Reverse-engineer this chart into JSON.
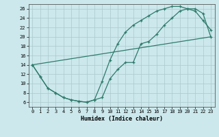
{
  "xlabel": "Humidex (Indice chaleur)",
  "bg_color": "#cce8ec",
  "grid_color": "#aac8cc",
  "line_color": "#2d7a6a",
  "xlim": [
    -0.5,
    23.5
  ],
  "ylim": [
    5,
    27
  ],
  "xticks": [
    0,
    1,
    2,
    3,
    4,
    5,
    6,
    7,
    8,
    9,
    10,
    11,
    12,
    13,
    14,
    15,
    16,
    17,
    18,
    19,
    20,
    21,
    22,
    23
  ],
  "yticks": [
    6,
    8,
    10,
    12,
    14,
    16,
    18,
    20,
    22,
    24,
    26
  ],
  "line1_x": [
    0,
    1,
    2,
    3,
    4,
    5,
    6,
    7,
    8,
    9,
    10,
    11,
    12,
    13,
    14,
    15,
    16,
    17,
    18,
    19,
    20,
    21,
    22,
    23
  ],
  "line1_y": [
    14.0,
    11.5,
    9.0,
    8.0,
    7.0,
    6.5,
    6.2,
    6.0,
    6.5,
    7.0,
    11.0,
    13.0,
    14.5,
    14.5,
    18.5,
    19.0,
    20.5,
    22.5,
    24.0,
    25.5,
    26.0,
    26.0,
    25.0,
    20.0
  ],
  "line2_x": [
    0,
    1,
    2,
    3,
    4,
    5,
    6,
    7,
    8,
    9,
    10,
    11,
    12,
    13,
    14,
    15,
    16,
    17,
    18,
    19,
    20,
    21,
    22,
    23
  ],
  "line2_y": [
    14.0,
    11.5,
    9.0,
    8.0,
    7.0,
    6.5,
    6.2,
    6.0,
    6.5,
    10.5,
    15.0,
    18.5,
    21.0,
    22.5,
    23.5,
    24.5,
    25.5,
    26.0,
    26.5,
    26.5,
    26.0,
    25.5,
    23.5,
    21.5
  ],
  "line3_x": [
    0,
    23
  ],
  "line3_y": [
    14.0,
    20.0
  ]
}
